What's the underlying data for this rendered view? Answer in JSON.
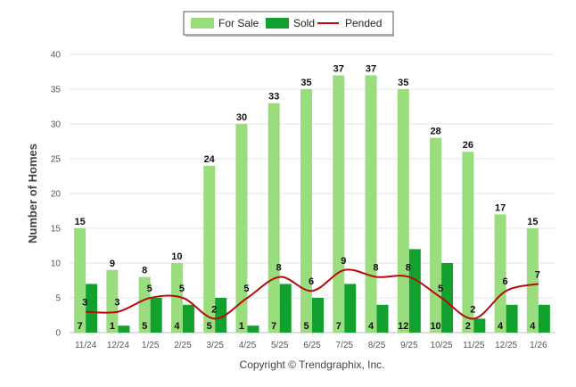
{
  "chart_data": {
    "type": "bar",
    "categories": [
      "11/24",
      "12/24",
      "1/25",
      "2/25",
      "3/25",
      "4/25",
      "5/25",
      "6/25",
      "7/25",
      "8/25",
      "9/25",
      "10/25",
      "11/25",
      "12/25",
      "1/26"
    ],
    "series": [
      {
        "name": "For Sale",
        "type": "bar",
        "color": "#9add7f",
        "values": [
          15,
          9,
          8,
          10,
          24,
          30,
          33,
          35,
          37,
          37,
          35,
          28,
          26,
          17,
          15
        ]
      },
      {
        "name": "Sold",
        "type": "bar",
        "color": "#12a02e",
        "values": [
          7,
          1,
          5,
          4,
          5,
          1,
          7,
          5,
          7,
          4,
          12,
          10,
          2,
          4,
          4
        ]
      },
      {
        "name": "Pended",
        "type": "line",
        "color": "#b80b0b",
        "values": [
          3,
          3,
          5,
          5,
          2,
          5,
          8,
          6,
          9,
          8,
          8,
          5,
          2,
          6,
          7
        ]
      }
    ],
    "ylabel": "Number of Homes",
    "xlabel": "",
    "ylim": [
      0,
      40
    ],
    "yticks": [
      0,
      5,
      10,
      15,
      20,
      25,
      30,
      35,
      40
    ],
    "grid": true,
    "legend": "top-center"
  },
  "footer": {
    "copyright": "Copyright © Trendgraphix, Inc."
  }
}
